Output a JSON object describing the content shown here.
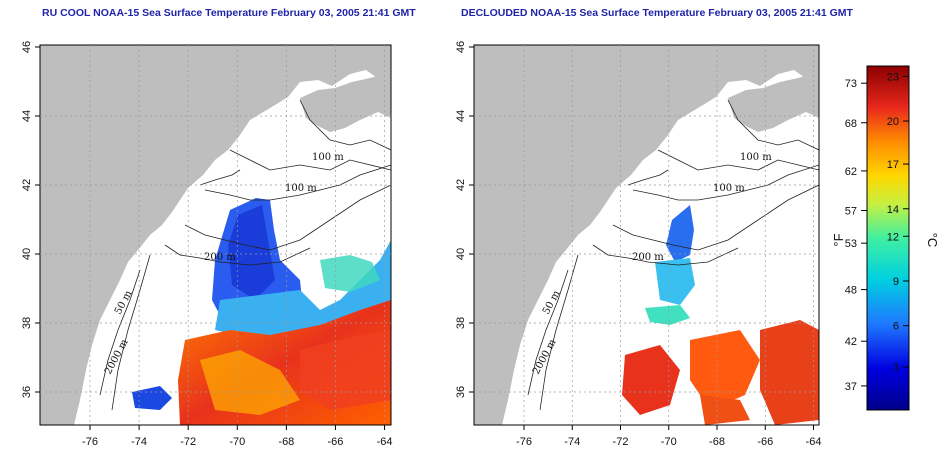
{
  "titles": {
    "left": "RU COOL NOAA-15 Sea Surface Temperature February 03, 2005 21:41 GMT",
    "right": "DECLOUDED NOAA-15 Sea Surface Temperature February 03, 2005 21:41 GMT"
  },
  "axes": {
    "lat_ticks": [
      "46",
      "44",
      "42",
      "40",
      "38",
      "36"
    ],
    "lon_ticks": [
      "-76",
      "-74",
      "-72",
      "-70",
      "-68",
      "-66",
      "-64"
    ]
  },
  "contour_labels": {
    "left": [
      "100 m",
      "100 m",
      "200 m",
      "50 m",
      "2000 m"
    ],
    "right": [
      "100 m",
      "100 m",
      "200 m",
      "50 m",
      "2000 m"
    ]
  },
  "colorbar": {
    "fahrenheit_label": "°F",
    "celsius_label": "°C",
    "fahrenheit_ticks": [
      "73",
      "68",
      "62",
      "57",
      "53",
      "48",
      "42",
      "37"
    ],
    "celsius_ticks": [
      "23",
      "20",
      "17",
      "14",
      "12",
      "9",
      "6",
      "3"
    ],
    "colors": [
      "#8b0000",
      "#e31a1c",
      "#ff7f00",
      "#ffd700",
      "#7fff50",
      "#00e5e5",
      "#1e90ff",
      "#0000b4",
      "#00008b"
    ]
  },
  "colors": {
    "land": "#bebebe",
    "ocean": "#ffffff",
    "title": "#1f24a8",
    "grid": "#9a9a9a"
  }
}
